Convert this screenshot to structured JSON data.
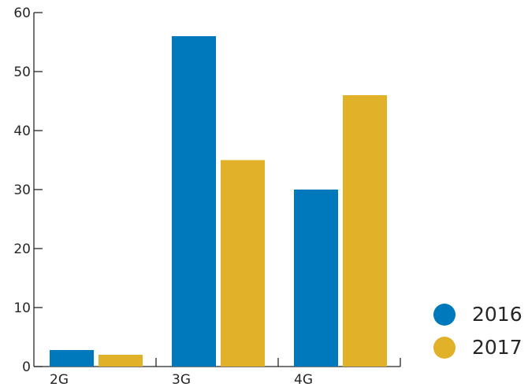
{
  "chart_data": {
    "type": "bar",
    "categories": [
      "2G",
      "3G",
      "4G"
    ],
    "series": [
      {
        "name": "2016",
        "values": [
          2.8,
          56,
          30
        ],
        "color": "#0079BC"
      },
      {
        "name": "2017",
        "values": [
          2,
          35,
          46
        ],
        "color": "#E2B12A"
      }
    ],
    "yticks": [
      0,
      10,
      20,
      30,
      40,
      50,
      60
    ],
    "ylim": [
      0,
      60
    ],
    "xlabel": "",
    "ylabel": "",
    "title": "",
    "grid": false,
    "legend_position": "right-bottom",
    "legend_marker": "circle"
  }
}
